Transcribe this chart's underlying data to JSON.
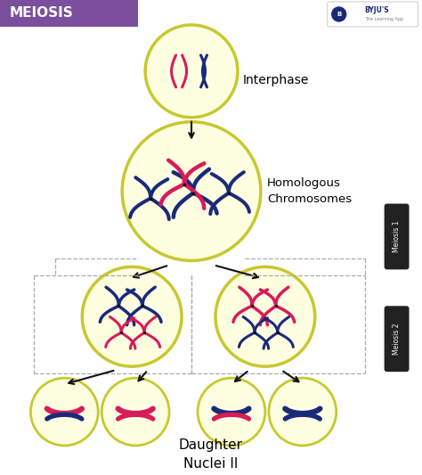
{
  "bg_color": "#ffffff",
  "header_color": "#7B4F9E",
  "header_text": "MEIOSIS",
  "header_text_color": "#ffffff",
  "cell_fill": "#FEFEE0",
  "cell_edge": "#C8C830",
  "pink": "#D81B5A",
  "blue": "#1A2A7A",
  "dark_pill": "#222222",
  "arrow_color": "#111111",
  "dash_color": "#aaaaaa",
  "label_interphase": "Interphase",
  "label_homologous": "Homologous\nChromosomes",
  "label_meiosis1": "Meiosis 1",
  "label_meiosis2": "Meiosis 2",
  "label_daughter": "Daughter\nNuclei II"
}
